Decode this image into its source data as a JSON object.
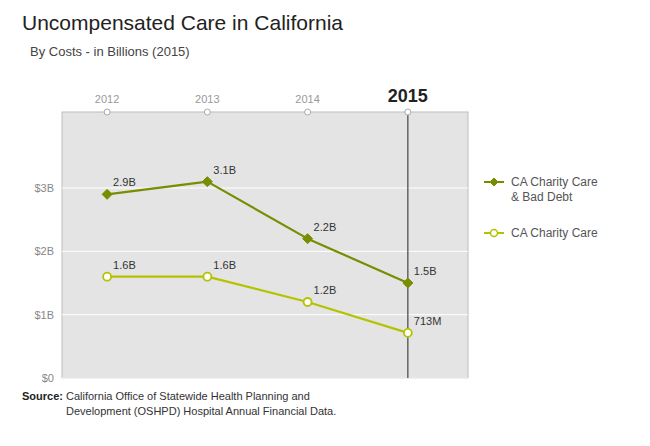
{
  "chart_data": {
    "type": "line",
    "title": "Uncompensated Care in California",
    "subtitle": "By Costs  - in Billions (2015)",
    "x": [
      2012,
      2013,
      2014,
      2015
    ],
    "xlim": [
      2011.55,
      2015.6
    ],
    "xticks": [
      2012,
      2013,
      2014,
      2015
    ],
    "ylim": [
      0,
      4.2
    ],
    "yticks": [
      {
        "value": 0,
        "label": "$0"
      },
      {
        "value": 1,
        "label": "$1B"
      },
      {
        "value": 2,
        "label": "$2B"
      },
      {
        "value": 3,
        "label": "$3B"
      }
    ],
    "grid": true,
    "legend": "right",
    "data_labels": true,
    "series": [
      {
        "name": "CA Charity Care\n& Bad Debt",
        "color": "#7a8c00",
        "marker": "diamond",
        "values": [
          2.9,
          3.1,
          2.2,
          1.5
        ],
        "value_labels": [
          "2.9B",
          "3.1B",
          "2.2B",
          "1.5B"
        ]
      },
      {
        "name": "CA Charity Care",
        "color": "#b5c200",
        "marker": "circle",
        "values": [
          1.6,
          1.6,
          1.2,
          0.713
        ],
        "value_labels": [
          "1.6B",
          "1.6B",
          "1.2B",
          "713M"
        ]
      }
    ],
    "source_label": "Source:",
    "source": " California Office of Statewide Health Planning and\nDevelopment (OSHPD) Hospital Annual Financial Data."
  }
}
